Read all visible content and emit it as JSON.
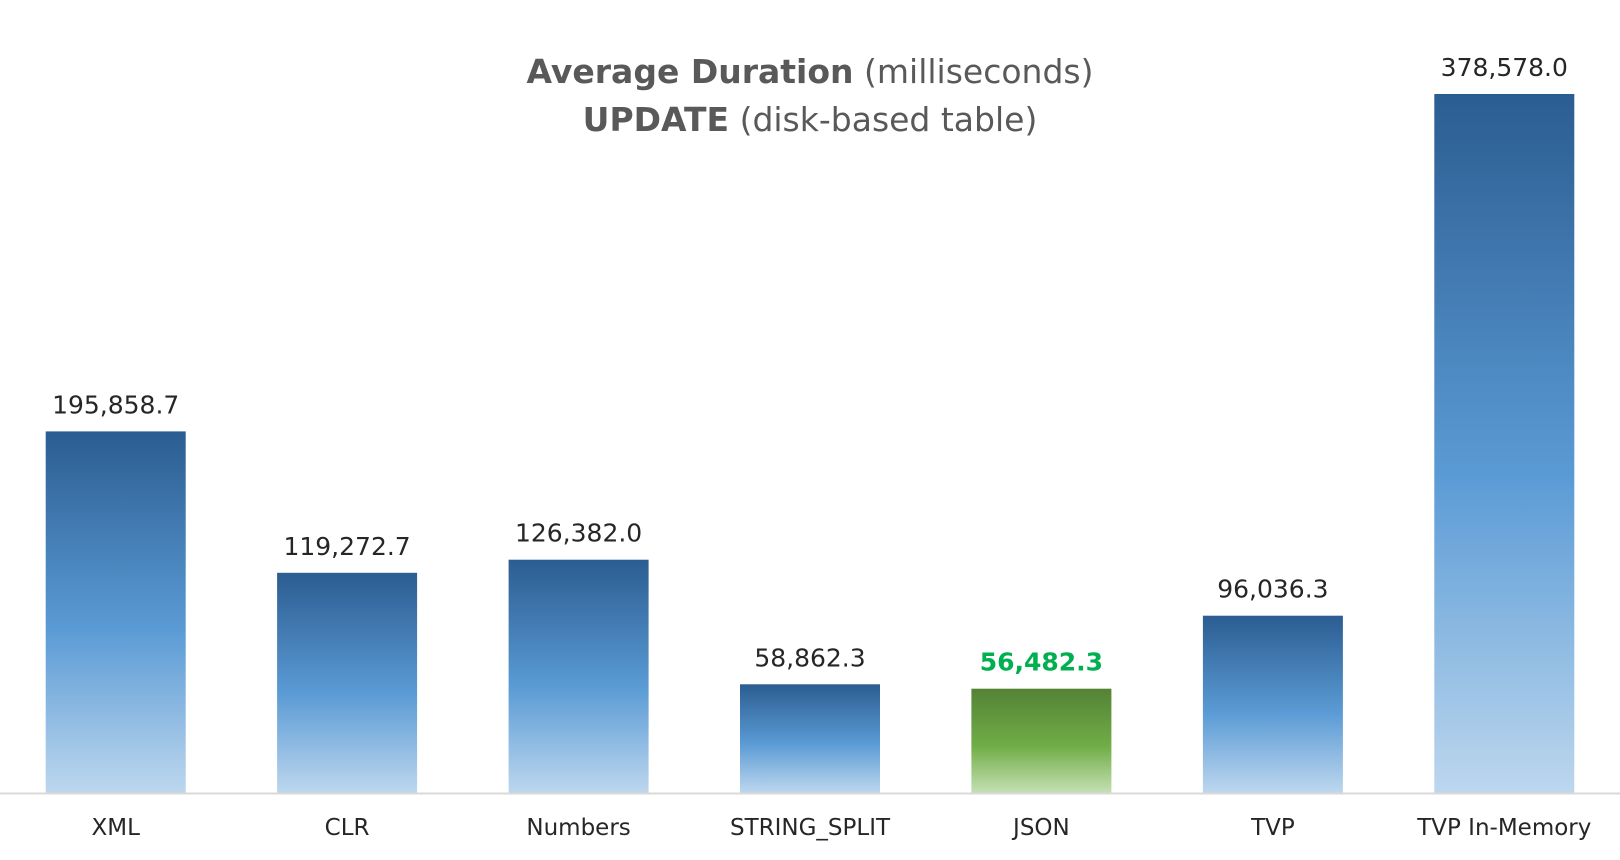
{
  "chart_data": {
    "type": "bar",
    "title": {
      "line1_bold": "Average Duration",
      "line1_rest": " (milliseconds)",
      "line2_bold": "UPDATE",
      "line2_rest": " (disk-based table)"
    },
    "xlabel": "",
    "ylabel": "",
    "ylim": [
      0,
      378578
    ],
    "grid": false,
    "legend": "none",
    "categories": [
      "XML",
      "CLR",
      "Numbers",
      "STRING_SPLIT",
      "JSON",
      "TVP",
      "TVP In-Memory"
    ],
    "values": [
      195858.7,
      119272.7,
      126382.0,
      58862.3,
      56482.3,
      96036.3,
      378578.0
    ],
    "data_labels": [
      "195,858.7",
      "119,272.7",
      "126,382.0",
      "58,862.3",
      "56,482.3",
      "96,036.3",
      "378,578.0"
    ],
    "highlight_index": 4,
    "colors": {
      "bar_top": "#2b5d91",
      "bar_mid": "#5b9bd5",
      "bar_bottom": "#bdd7ee",
      "highlight_top": "#548235",
      "highlight_mid": "#70ad47",
      "highlight_bottom": "#c5e0b4",
      "highlight_label": "#00b050",
      "label": "#262626",
      "title": "#595959",
      "axis": "#d9d9d9"
    }
  }
}
